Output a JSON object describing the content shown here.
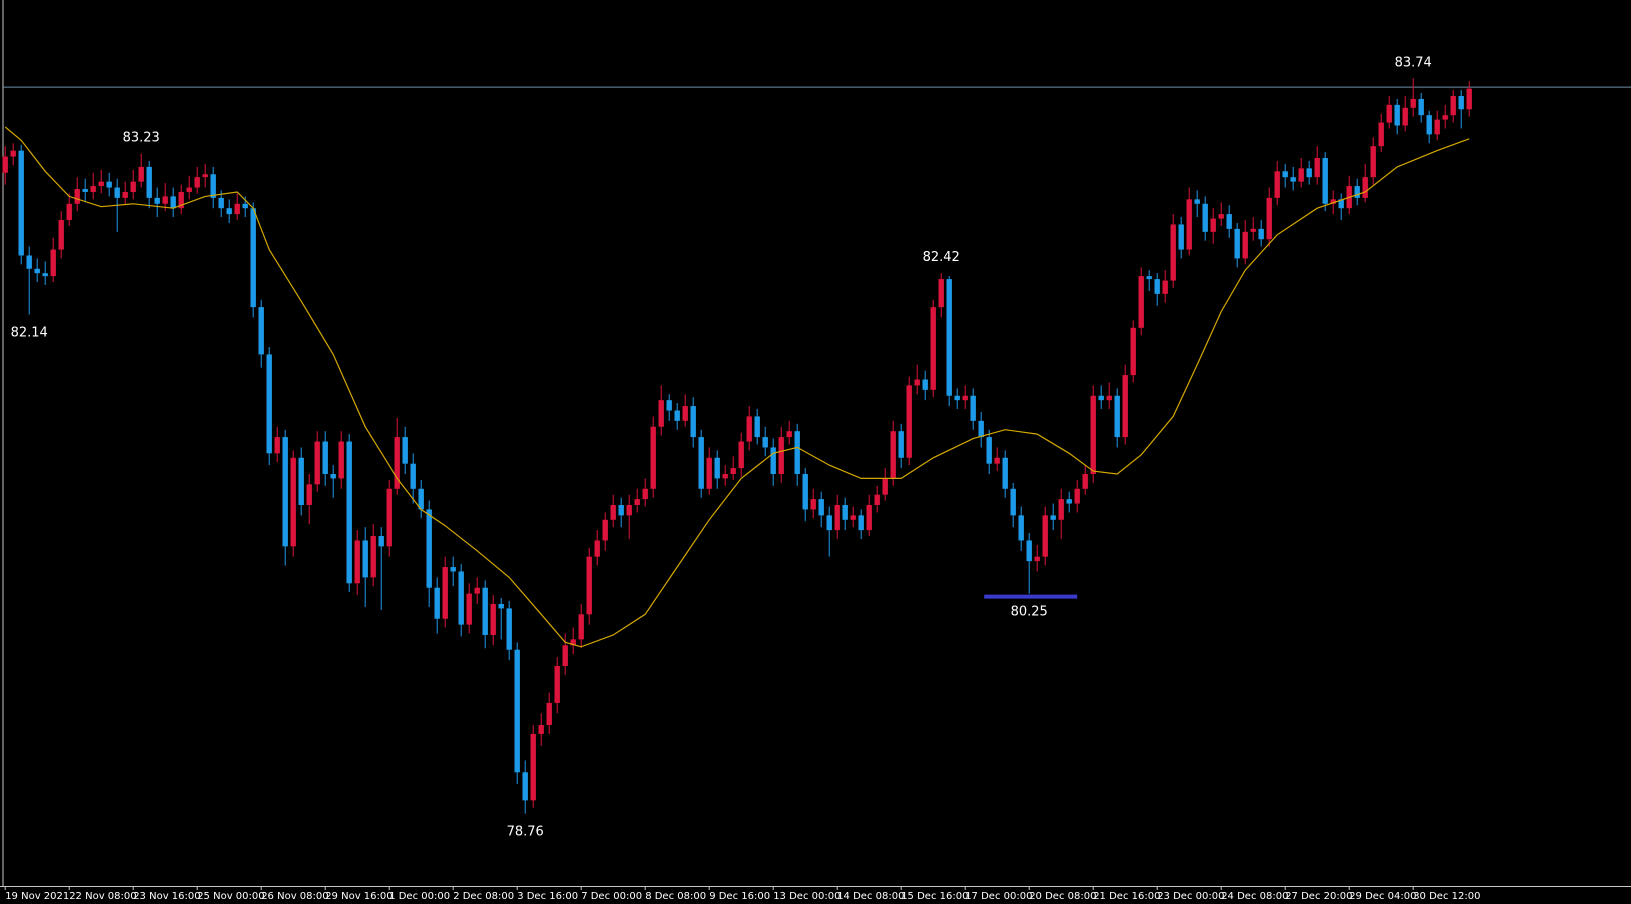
{
  "chart_data": {
    "type": "candlestick",
    "up_color": "#dc143c",
    "down_color": "#1e9be8",
    "ma_color": "#d4a800",
    "bid_color": "#6f8fa8",
    "highlight_color": "#3a3acc",
    "ylim": [
      78.27,
      84.27
    ],
    "xticks": [
      {
        "value": 0,
        "label": "19 Nov 2021"
      },
      {
        "value": 8,
        "label": "22 Nov 08:00"
      },
      {
        "value": 16,
        "label": "23 Nov 16:00"
      },
      {
        "value": 24,
        "label": "25 Nov 00:00"
      },
      {
        "value": 32,
        "label": "26 Nov 08:00"
      },
      {
        "value": 40,
        "label": "29 Nov 16:00"
      },
      {
        "value": 48,
        "label": "1 Dec 00:00"
      },
      {
        "value": 56,
        "label": "2 Dec 08:00"
      },
      {
        "value": 64,
        "label": "3 Dec 16:00"
      },
      {
        "value": 72,
        "label": "7 Dec 00:00"
      },
      {
        "value": 80,
        "label": "8 Dec 08:00"
      },
      {
        "value": 88,
        "label": "9 Dec 16:00"
      },
      {
        "value": 96,
        "label": "13 Dec 00:00"
      },
      {
        "value": 104,
        "label": "14 Dec 08:00"
      },
      {
        "value": 112,
        "label": "15 Dec 16:00"
      },
      {
        "value": 120,
        "label": "17 Dec 00:00"
      },
      {
        "value": 128,
        "label": "20 Dec 08:00"
      },
      {
        "value": 136,
        "label": "21 Dec 16:00"
      },
      {
        "value": 144,
        "label": "23 Dec 00:00"
      },
      {
        "value": 152,
        "label": "24 Dec 08:00"
      },
      {
        "value": 160,
        "label": "27 Dec 20:00"
      },
      {
        "value": 168,
        "label": "29 Dec 04:00"
      },
      {
        "value": 176,
        "label": "30 Dec 12:00"
      }
    ],
    "bid": 83.68,
    "annotations": [
      {
        "value": 83.23,
        "at": 17
      },
      {
        "value": 82.14,
        "at": 3
      },
      {
        "value": 82.42,
        "at": 117
      },
      {
        "value": 80.25,
        "at": 128,
        "highlight": true
      },
      {
        "value": 78.76,
        "at": 65
      },
      {
        "value": 83.74,
        "at": 176
      }
    ],
    "candles": [
      [
        83.1,
        83.28,
        83.02,
        83.21
      ],
      [
        83.21,
        83.3,
        83.15,
        83.25
      ],
      [
        83.25,
        83.29,
        82.48,
        82.54
      ],
      [
        82.54,
        82.6,
        82.14,
        82.45
      ],
      [
        82.45,
        82.52,
        82.36,
        82.42
      ],
      [
        82.42,
        82.5,
        82.34,
        82.4
      ],
      [
        82.4,
        82.66,
        82.36,
        82.58
      ],
      [
        82.58,
        82.84,
        82.52,
        82.78
      ],
      [
        82.78,
        82.96,
        82.74,
        82.89
      ],
      [
        82.89,
        83.07,
        82.84,
        82.99
      ],
      [
        82.99,
        83.06,
        82.9,
        82.97
      ],
      [
        82.97,
        83.1,
        82.92,
        83.01
      ],
      [
        83.01,
        83.12,
        82.96,
        83.04
      ],
      [
        83.04,
        83.1,
        82.94,
        83.0
      ],
      [
        83.0,
        83.06,
        82.7,
        82.93
      ],
      [
        82.93,
        83.04,
        82.88,
        82.97
      ],
      [
        82.97,
        83.12,
        82.92,
        83.04
      ],
      [
        83.04,
        83.23,
        83.0,
        83.14
      ],
      [
        83.14,
        83.18,
        82.86,
        82.93
      ],
      [
        82.93,
        83.0,
        82.8,
        82.89
      ],
      [
        82.89,
        83.03,
        82.84,
        82.94
      ],
      [
        82.94,
        83.0,
        82.8,
        82.86
      ],
      [
        82.86,
        83.02,
        82.82,
        82.97
      ],
      [
        82.97,
        83.08,
        82.92,
        83.0
      ],
      [
        83.0,
        83.14,
        82.96,
        83.07
      ],
      [
        83.07,
        83.16,
        83.0,
        83.09
      ],
      [
        83.09,
        83.14,
        82.86,
        82.93
      ],
      [
        82.93,
        82.98,
        82.8,
        82.86
      ],
      [
        82.86,
        82.92,
        82.76,
        82.82
      ],
      [
        82.82,
        82.96,
        82.78,
        82.89
      ],
      [
        82.89,
        82.94,
        82.8,
        82.86
      ],
      [
        82.86,
        82.9,
        82.12,
        82.19
      ],
      [
        82.19,
        82.24,
        81.78,
        81.87
      ],
      [
        81.87,
        81.92,
        81.12,
        81.2
      ],
      [
        81.2,
        81.38,
        81.14,
        81.31
      ],
      [
        81.31,
        81.36,
        80.44,
        80.57
      ],
      [
        80.57,
        81.22,
        80.5,
        81.17
      ],
      [
        81.17,
        81.24,
        80.78,
        80.85
      ],
      [
        80.85,
        81.06,
        80.72,
        80.99
      ],
      [
        80.99,
        81.35,
        80.94,
        81.28
      ],
      [
        81.28,
        81.35,
        80.98,
        81.06
      ],
      [
        81.06,
        81.12,
        80.9,
        81.03
      ],
      [
        81.03,
        81.35,
        80.96,
        81.28
      ],
      [
        81.28,
        81.33,
        80.26,
        80.32
      ],
      [
        80.32,
        80.68,
        80.24,
        80.61
      ],
      [
        80.61,
        80.7,
        80.16,
        80.36
      ],
      [
        80.36,
        80.72,
        80.3,
        80.64
      ],
      [
        80.64,
        80.7,
        80.14,
        80.57
      ],
      [
        80.57,
        81.02,
        80.5,
        80.96
      ],
      [
        80.96,
        81.44,
        80.92,
        81.31
      ],
      [
        81.31,
        81.38,
        81.06,
        81.13
      ],
      [
        81.13,
        81.2,
        80.86,
        80.96
      ],
      [
        80.96,
        81.02,
        80.76,
        80.82
      ],
      [
        80.82,
        80.88,
        80.16,
        80.29
      ],
      [
        80.29,
        80.36,
        79.98,
        80.08
      ],
      [
        80.08,
        80.5,
        80.02,
        80.43
      ],
      [
        80.43,
        80.5,
        80.3,
        80.4
      ],
      [
        80.4,
        80.45,
        79.96,
        80.04
      ],
      [
        80.04,
        80.32,
        79.98,
        80.25
      ],
      [
        80.25,
        80.36,
        80.18,
        80.29
      ],
      [
        80.29,
        80.34,
        79.88,
        79.97
      ],
      [
        79.97,
        80.24,
        79.9,
        80.18
      ],
      [
        80.18,
        80.22,
        79.94,
        80.15
      ],
      [
        80.15,
        80.2,
        79.8,
        79.87
      ],
      [
        79.87,
        79.92,
        78.96,
        79.04
      ],
      [
        79.04,
        79.12,
        78.76,
        78.85
      ],
      [
        78.85,
        79.36,
        78.8,
        79.3
      ],
      [
        79.3,
        79.44,
        79.22,
        79.36
      ],
      [
        79.36,
        79.58,
        79.3,
        79.51
      ],
      [
        79.51,
        79.82,
        79.44,
        79.76
      ],
      [
        79.76,
        79.98,
        79.7,
        79.9
      ],
      [
        79.9,
        80.02,
        79.84,
        79.94
      ],
      [
        79.94,
        80.18,
        79.88,
        80.11
      ],
      [
        80.11,
        80.56,
        80.04,
        80.5
      ],
      [
        80.5,
        80.68,
        80.44,
        80.61
      ],
      [
        80.61,
        80.8,
        80.54,
        80.75
      ],
      [
        80.75,
        80.92,
        80.7,
        80.85
      ],
      [
        80.85,
        80.9,
        80.7,
        80.78
      ],
      [
        80.78,
        80.92,
        80.62,
        80.85
      ],
      [
        80.85,
        80.96,
        80.8,
        80.89
      ],
      [
        80.89,
        81.03,
        80.84,
        80.96
      ],
      [
        80.96,
        81.45,
        80.9,
        81.38
      ],
      [
        81.38,
        81.66,
        81.32,
        81.56
      ],
      [
        81.56,
        81.6,
        81.42,
        81.49
      ],
      [
        81.49,
        81.54,
        81.36,
        81.42
      ],
      [
        81.42,
        81.6,
        81.38,
        81.52
      ],
      [
        81.52,
        81.58,
        81.24,
        81.31
      ],
      [
        81.31,
        81.36,
        80.9,
        80.96
      ],
      [
        80.96,
        81.24,
        80.92,
        81.17
      ],
      [
        81.17,
        81.22,
        80.96,
        81.03
      ],
      [
        81.03,
        81.12,
        80.98,
        81.06
      ],
      [
        81.06,
        81.18,
        81.02,
        81.1
      ],
      [
        81.1,
        81.34,
        81.04,
        81.28
      ],
      [
        81.28,
        81.52,
        81.22,
        81.45
      ],
      [
        81.45,
        81.5,
        81.26,
        81.31
      ],
      [
        81.31,
        81.38,
        81.18,
        81.24
      ],
      [
        81.24,
        81.3,
        80.98,
        81.06
      ],
      [
        81.06,
        81.38,
        81.0,
        81.31
      ],
      [
        81.31,
        81.42,
        81.26,
        81.35
      ],
      [
        81.35,
        81.4,
        80.98,
        81.06
      ],
      [
        81.06,
        81.1,
        80.74,
        80.82
      ],
      [
        80.82,
        80.96,
        80.76,
        80.89
      ],
      [
        80.89,
        80.94,
        80.7,
        80.78
      ],
      [
        80.78,
        80.84,
        80.5,
        80.68
      ],
      [
        80.68,
        80.92,
        80.62,
        80.85
      ],
      [
        80.85,
        80.9,
        80.68,
        80.75
      ],
      [
        80.75,
        80.84,
        80.7,
        80.78
      ],
      [
        80.78,
        80.82,
        80.62,
        80.68
      ],
      [
        80.68,
        80.92,
        80.64,
        80.85
      ],
      [
        80.85,
        80.98,
        80.8,
        80.92
      ],
      [
        80.92,
        81.1,
        80.88,
        81.03
      ],
      [
        81.03,
        81.42,
        80.98,
        81.35
      ],
      [
        81.35,
        81.4,
        81.1,
        81.17
      ],
      [
        81.17,
        81.72,
        81.12,
        81.66
      ],
      [
        81.66,
        81.8,
        81.6,
        81.7
      ],
      [
        81.7,
        81.76,
        81.56,
        81.63
      ],
      [
        81.63,
        82.24,
        81.58,
        82.19
      ],
      [
        82.19,
        82.42,
        82.12,
        82.38
      ],
      [
        82.38,
        82.4,
        81.52,
        81.59
      ],
      [
        81.59,
        81.64,
        81.5,
        81.56
      ],
      [
        81.56,
        81.66,
        81.5,
        81.59
      ],
      [
        81.59,
        81.64,
        81.36,
        81.42
      ],
      [
        81.42,
        81.48,
        81.24,
        81.31
      ],
      [
        81.31,
        81.36,
        81.06,
        81.13
      ],
      [
        81.13,
        81.24,
        81.08,
        81.17
      ],
      [
        81.17,
        81.22,
        80.9,
        80.96
      ],
      [
        80.96,
        81.0,
        80.7,
        80.78
      ],
      [
        80.78,
        80.84,
        80.54,
        80.61
      ],
      [
        80.61,
        80.66,
        80.25,
        80.47
      ],
      [
        80.47,
        80.58,
        80.4,
        80.5
      ],
      [
        80.5,
        80.84,
        80.44,
        80.78
      ],
      [
        80.78,
        80.86,
        80.68,
        80.75
      ],
      [
        80.75,
        80.96,
        80.62,
        80.89
      ],
      [
        80.89,
        80.94,
        80.8,
        80.86
      ],
      [
        80.86,
        81.02,
        80.8,
        80.96
      ],
      [
        80.96,
        81.12,
        80.92,
        81.06
      ],
      [
        81.06,
        81.66,
        81.0,
        81.59
      ],
      [
        81.59,
        81.66,
        81.5,
        81.56
      ],
      [
        81.56,
        81.68,
        81.5,
        81.59
      ],
      [
        81.59,
        81.64,
        81.24,
        81.31
      ],
      [
        81.31,
        81.8,
        81.26,
        81.73
      ],
      [
        81.73,
        82.1,
        81.68,
        82.05
      ],
      [
        82.05,
        82.46,
        82.0,
        82.4
      ],
      [
        82.4,
        82.44,
        82.3,
        82.38
      ],
      [
        82.38,
        82.42,
        82.2,
        82.28
      ],
      [
        82.28,
        82.44,
        82.22,
        82.37
      ],
      [
        82.37,
        82.82,
        82.32,
        82.75
      ],
      [
        82.75,
        82.8,
        82.52,
        82.58
      ],
      [
        82.58,
        83.0,
        82.54,
        82.92
      ],
      [
        82.92,
        82.98,
        82.8,
        82.89
      ],
      [
        82.89,
        82.94,
        82.64,
        82.7
      ],
      [
        82.7,
        82.86,
        82.62,
        82.79
      ],
      [
        82.79,
        82.9,
        82.74,
        82.82
      ],
      [
        82.82,
        82.88,
        82.66,
        82.72
      ],
      [
        82.72,
        82.76,
        82.46,
        82.52
      ],
      [
        82.52,
        82.78,
        82.48,
        82.7
      ],
      [
        82.7,
        82.8,
        82.64,
        82.72
      ],
      [
        82.72,
        82.78,
        82.6,
        82.65
      ],
      [
        82.65,
        83.0,
        82.6,
        82.93
      ],
      [
        82.93,
        83.18,
        82.88,
        83.11
      ],
      [
        83.11,
        83.16,
        83.0,
        83.07
      ],
      [
        83.07,
        83.14,
        82.98,
        83.04
      ],
      [
        83.04,
        83.2,
        83.0,
        83.13
      ],
      [
        83.13,
        83.18,
        83.02,
        83.07
      ],
      [
        83.07,
        83.28,
        83.02,
        83.2
      ],
      [
        83.2,
        83.24,
        82.84,
        82.89
      ],
      [
        82.89,
        82.98,
        82.82,
        82.92
      ],
      [
        82.92,
        82.96,
        82.78,
        82.86
      ],
      [
        82.86,
        83.08,
        82.82,
        83.01
      ],
      [
        83.01,
        83.06,
        82.88,
        82.93
      ],
      [
        82.93,
        83.16,
        82.9,
        83.07
      ],
      [
        83.07,
        83.34,
        83.02,
        83.28
      ],
      [
        83.28,
        83.5,
        83.24,
        83.44
      ],
      [
        83.44,
        83.62,
        83.4,
        83.56
      ],
      [
        83.56,
        83.6,
        83.36,
        83.42
      ],
      [
        83.42,
        83.62,
        83.38,
        83.54
      ],
      [
        83.54,
        83.74,
        83.48,
        83.6
      ],
      [
        83.6,
        83.64,
        83.44,
        83.49
      ],
      [
        83.49,
        83.52,
        83.3,
        83.36
      ],
      [
        83.36,
        83.52,
        83.32,
        83.46
      ],
      [
        83.46,
        83.56,
        83.4,
        83.49
      ],
      [
        83.49,
        83.66,
        83.44,
        83.62
      ],
      [
        83.62,
        83.66,
        83.4,
        83.53
      ],
      [
        83.53,
        83.72,
        83.48,
        83.67
      ]
    ],
    "ma": {
      "x": [
        0,
        2,
        5,
        8,
        12,
        16,
        21,
        25,
        29,
        31,
        33,
        37,
        41,
        45,
        49,
        52,
        55,
        59,
        63,
        67,
        70,
        72,
        76,
        80,
        84,
        88,
        92,
        96,
        99,
        103,
        107,
        112,
        116,
        121,
        125,
        129,
        133,
        136,
        139,
        142,
        146,
        149,
        152,
        155,
        159,
        164,
        170,
        174,
        179,
        183
      ],
      "values": [
        83.41,
        83.32,
        83.11,
        82.94,
        82.87,
        82.89,
        82.86,
        82.94,
        82.97,
        82.86,
        82.58,
        82.23,
        81.87,
        81.38,
        81.03,
        80.82,
        80.71,
        80.54,
        80.36,
        80.11,
        79.92,
        79.89,
        79.97,
        80.11,
        80.43,
        80.75,
        81.03,
        81.2,
        81.24,
        81.12,
        81.03,
        81.03,
        81.17,
        81.3,
        81.36,
        81.33,
        81.2,
        81.08,
        81.06,
        81.19,
        81.45,
        81.8,
        82.16,
        82.44,
        82.68,
        82.86,
        82.97,
        83.14,
        83.25,
        83.33
      ]
    }
  }
}
